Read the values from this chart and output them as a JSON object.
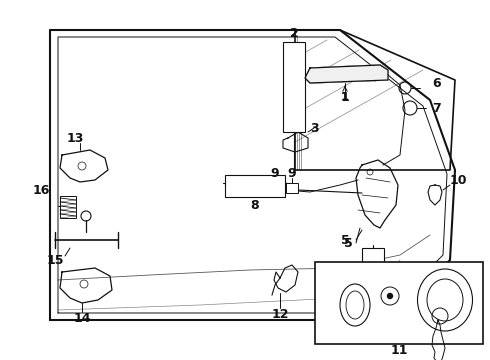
{
  "bg_color": "#ffffff",
  "line_color": "#111111",
  "fig_width": 4.9,
  "fig_height": 3.6,
  "dpi": 100
}
